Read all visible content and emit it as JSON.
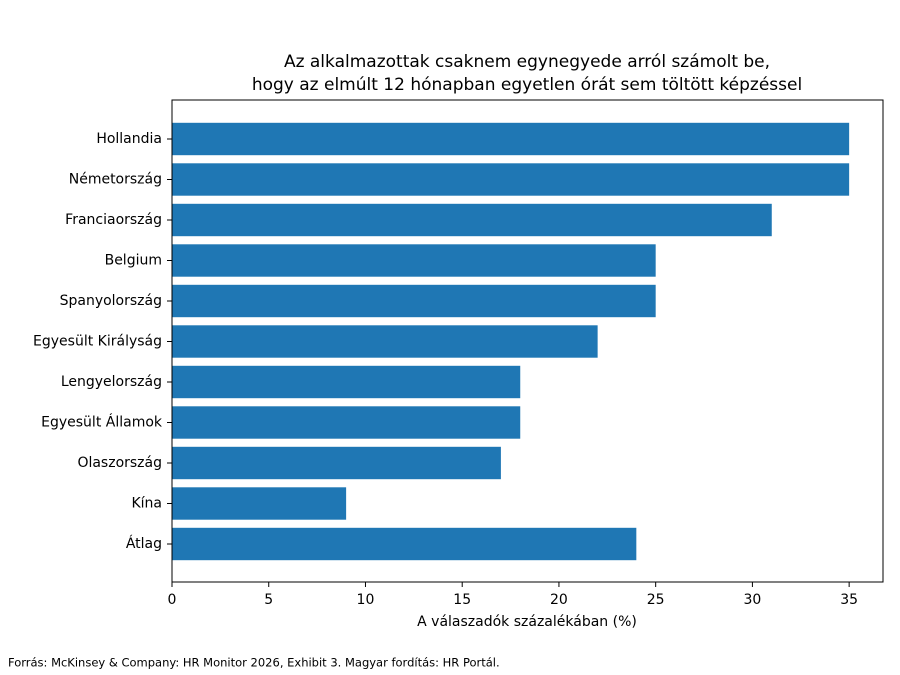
{
  "chart_data": {
    "type": "bar",
    "orientation": "horizontal",
    "title": [
      "Az alkalmazottak csaknem egynegyede arról számolt be,",
      "hogy az elmúlt 12 hónapban egyetlen órát sem töltött képzéssel"
    ],
    "x_label": "A válaszadók százalékában (%)",
    "categories": [
      "Hollandia",
      "Németország",
      "Franciaország",
      "Belgium",
      "Spanyolország",
      "Egyesült Királyság",
      "Lengyelország",
      "Egyesült Államok",
      "Olaszország",
      "Kína",
      "Átlag"
    ],
    "values": [
      35,
      35,
      31,
      25,
      25,
      22,
      18,
      18,
      17,
      9,
      24
    ],
    "color": "#1f77b4",
    "xlim": [
      0,
      36.75
    ],
    "xticks": [
      0,
      5,
      10,
      15,
      20,
      25,
      30,
      35
    ],
    "grid": false,
    "source": "Forrás: McKinsey & Company: HR Monitor 2026, Exhibit 3. Magyar fordítás: HR Portál."
  }
}
